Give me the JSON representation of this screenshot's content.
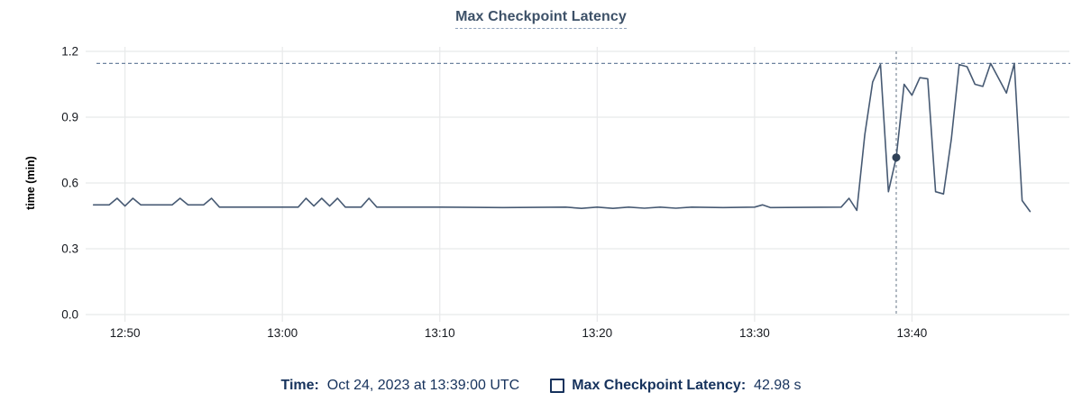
{
  "title": "Max Checkpoint Latency",
  "legend": {
    "time_label": "Time:",
    "time_value": "  Oct 24, 2023 at 13:39:00 UTC",
    "series_label": "Max Checkpoint Latency:",
    "series_value": "  42.98 s"
  },
  "colors": {
    "title": "#3d5168",
    "title_underline": "#8fa3bd",
    "axis_text": "#16191f",
    "grid": "#e8e9ea",
    "series_line": "#475a73",
    "threshold_line": "#6e84a0",
    "crosshair": "#98a3af",
    "marker": "#2f4157",
    "legend_text": "#16325c"
  },
  "chart_data": {
    "type": "line",
    "title": "Max Checkpoint Latency",
    "xlabel": "",
    "ylabel": "time (min)",
    "x_ticks": [
      "12:50",
      "13:00",
      "13:10",
      "13:20",
      "13:30",
      "13:40"
    ],
    "y_ticks": [
      0.0,
      0.3,
      0.6,
      0.9,
      1.2
    ],
    "ylim": [
      0,
      1.2
    ],
    "x_domain": [
      "12:47:30",
      "13:50:00"
    ],
    "grid": true,
    "legend_position": "bottom",
    "threshold": 1.145,
    "selected_point": {
      "time": "13:39:00",
      "value_min": 0.7163,
      "value_label": "42.98 s"
    },
    "series": [
      {
        "name": "Max Checkpoint Latency",
        "points": [
          [
            "12:48:00",
            0.5
          ],
          [
            "12:49:00",
            0.5
          ],
          [
            "12:49:30",
            0.53
          ],
          [
            "12:50:00",
            0.495
          ],
          [
            "12:50:30",
            0.53
          ],
          [
            "12:51:00",
            0.5
          ],
          [
            "12:53:00",
            0.5
          ],
          [
            "12:53:30",
            0.53
          ],
          [
            "12:54:00",
            0.5
          ],
          [
            "12:55:00",
            0.5
          ],
          [
            "12:55:30",
            0.53
          ],
          [
            "12:56:00",
            0.49
          ],
          [
            "13:01:00",
            0.49
          ],
          [
            "13:01:30",
            0.53
          ],
          [
            "13:02:00",
            0.495
          ],
          [
            "13:02:30",
            0.53
          ],
          [
            "13:03:00",
            0.495
          ],
          [
            "13:03:30",
            0.53
          ],
          [
            "13:04:00",
            0.49
          ],
          [
            "13:05:00",
            0.49
          ],
          [
            "13:05:30",
            0.53
          ],
          [
            "13:06:00",
            0.49
          ],
          [
            "13:10:00",
            0.49
          ],
          [
            "13:14:00",
            0.488
          ],
          [
            "13:18:00",
            0.49
          ],
          [
            "13:19:00",
            0.484
          ],
          [
            "13:20:00",
            0.49
          ],
          [
            "13:21:00",
            0.484
          ],
          [
            "13:22:00",
            0.49
          ],
          [
            "13:23:00",
            0.485
          ],
          [
            "13:24:00",
            0.49
          ],
          [
            "13:25:00",
            0.485
          ],
          [
            "13:26:00",
            0.49
          ],
          [
            "13:28:00",
            0.488
          ],
          [
            "13:30:00",
            0.49
          ],
          [
            "13:30:30",
            0.5
          ],
          [
            "13:31:00",
            0.488
          ],
          [
            "13:35:30",
            0.49
          ],
          [
            "13:36:00",
            0.53
          ],
          [
            "13:36:30",
            0.475
          ],
          [
            "13:37:00",
            0.82
          ],
          [
            "13:37:30",
            1.06
          ],
          [
            "13:38:00",
            1.14
          ],
          [
            "13:38:30",
            0.56
          ],
          [
            "13:39:00",
            0.7163
          ],
          [
            "13:39:30",
            1.05
          ],
          [
            "13:40:00",
            1.0
          ],
          [
            "13:40:30",
            1.08
          ],
          [
            "13:41:00",
            1.075
          ],
          [
            "13:41:30",
            0.56
          ],
          [
            "13:42:00",
            0.55
          ],
          [
            "13:42:30",
            0.8
          ],
          [
            "13:43:00",
            1.14
          ],
          [
            "13:43:30",
            1.13
          ],
          [
            "13:44:00",
            1.05
          ],
          [
            "13:44:30",
            1.04
          ],
          [
            "13:45:00",
            1.145
          ],
          [
            "13:46:00",
            1.01
          ],
          [
            "13:46:30",
            1.145
          ],
          [
            "13:47:00",
            0.52
          ],
          [
            "13:47:30",
            0.47
          ]
        ]
      }
    ]
  }
}
